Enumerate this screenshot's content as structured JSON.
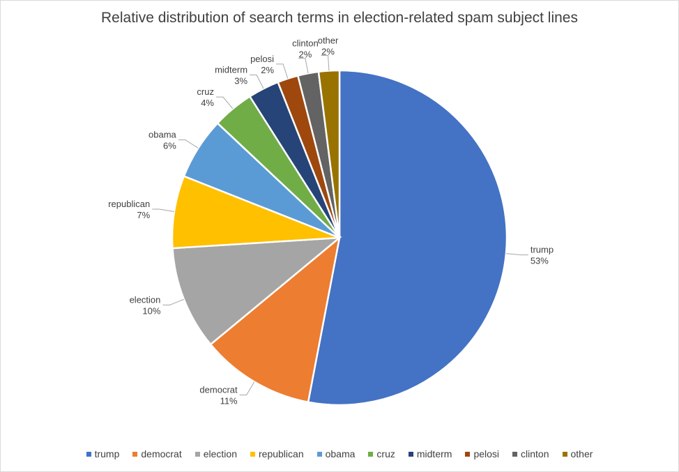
{
  "chart_data": {
    "type": "pie",
    "title": "Relative distribution of search terms in election-related spam subject lines",
    "slices": [
      {
        "name": "trump",
        "value": 53,
        "label": "53%",
        "color": "#4472C4"
      },
      {
        "name": "democrat",
        "value": 11,
        "label": "11%",
        "color": "#ED7D31"
      },
      {
        "name": "election",
        "value": 10,
        "label": "10%",
        "color": "#A5A5A5"
      },
      {
        "name": "republican",
        "value": 7,
        "label": "7%",
        "color": "#FFC000"
      },
      {
        "name": "obama",
        "value": 6,
        "label": "6%",
        "color": "#5B9BD5"
      },
      {
        "name": "cruz",
        "value": 4,
        "label": "4%",
        "color": "#70AD47"
      },
      {
        "name": "midterm",
        "value": 3,
        "label": "3%",
        "color": "#264478"
      },
      {
        "name": "pelosi",
        "value": 2,
        "label": "2%",
        "color": "#9E480E"
      },
      {
        "name": "clinton",
        "value": 2,
        "label": "2%",
        "color": "#636363"
      },
      {
        "name": "other",
        "value": 2,
        "label": "2%",
        "color": "#997300"
      }
    ],
    "legend_position": "bottom"
  }
}
